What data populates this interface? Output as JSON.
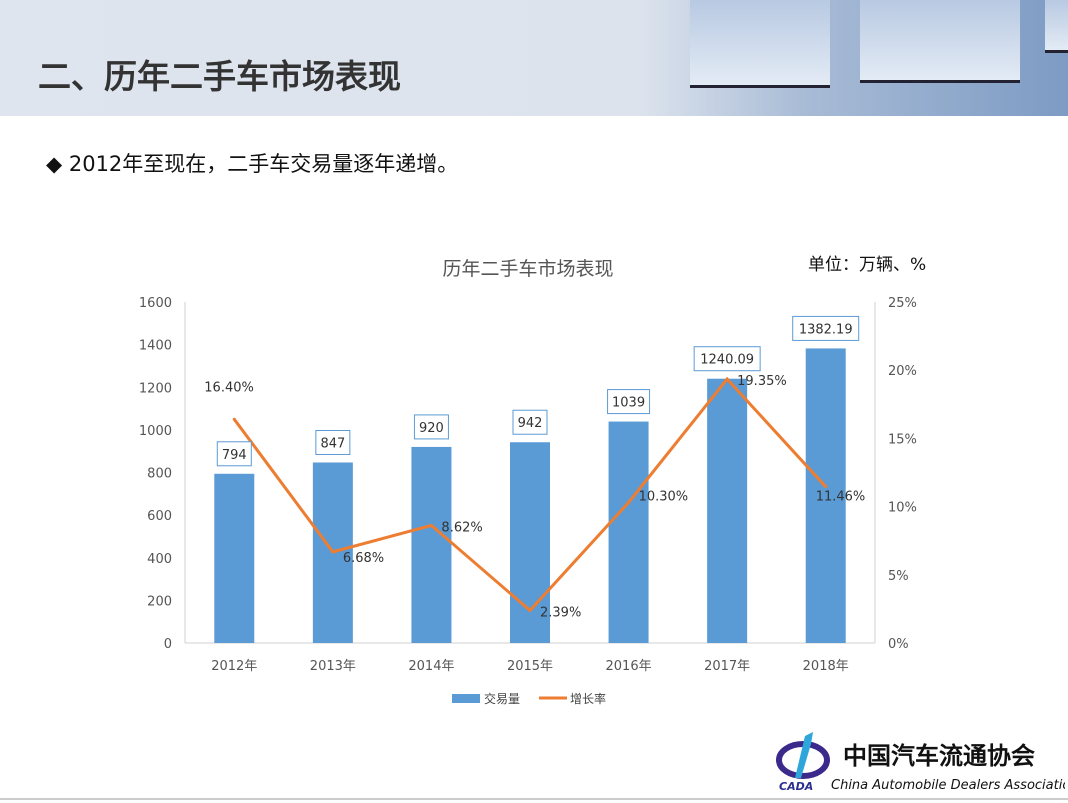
{
  "header": {
    "title": "二、历年二手车市场表现"
  },
  "bullet": {
    "marker": "◆",
    "text": "2012年至现在，二手车交易量逐年递增。"
  },
  "logo": {
    "cn": "中国汽车流通协会",
    "en": "China Automobile Dealers Association",
    "abbr": "CADA"
  },
  "colors": {
    "bar": "#5b9bd5",
    "line": "#ed7d31"
  },
  "chart_data": {
    "type": "bar+line",
    "title": "历年二手车市场表现",
    "unit_note": "单位：万辆、%",
    "categories": [
      "2012年",
      "2013年",
      "2014年",
      "2015年",
      "2016年",
      "2017年",
      "2018年"
    ],
    "series": [
      {
        "name": "交易量",
        "type": "bar",
        "axis": "left",
        "values": [
          794,
          847,
          920,
          942,
          1039,
          1240.09,
          1382.19
        ],
        "labels": [
          "794",
          "847",
          "920",
          "942",
          "1039",
          "1240.09",
          "1382.19"
        ]
      },
      {
        "name": "增长率",
        "type": "line",
        "axis": "right",
        "values": [
          16.4,
          6.68,
          8.62,
          2.39,
          10.3,
          19.35,
          11.46
        ],
        "labels": [
          "16.40%",
          "6.68%",
          "8.62%",
          "2.39%",
          "10.30%",
          "19.35%",
          "11.46%"
        ]
      }
    ],
    "left_axis": {
      "ylim": [
        0,
        1600
      ],
      "ticks": [
        "0",
        "200",
        "400",
        "600",
        "800",
        "1000",
        "1200",
        "1400",
        "1600"
      ]
    },
    "right_axis": {
      "ylim": [
        0,
        25
      ],
      "ticks": [
        "0%",
        "5%",
        "10%",
        "15%",
        "20%",
        "25%"
      ]
    },
    "legend": "bottom"
  }
}
